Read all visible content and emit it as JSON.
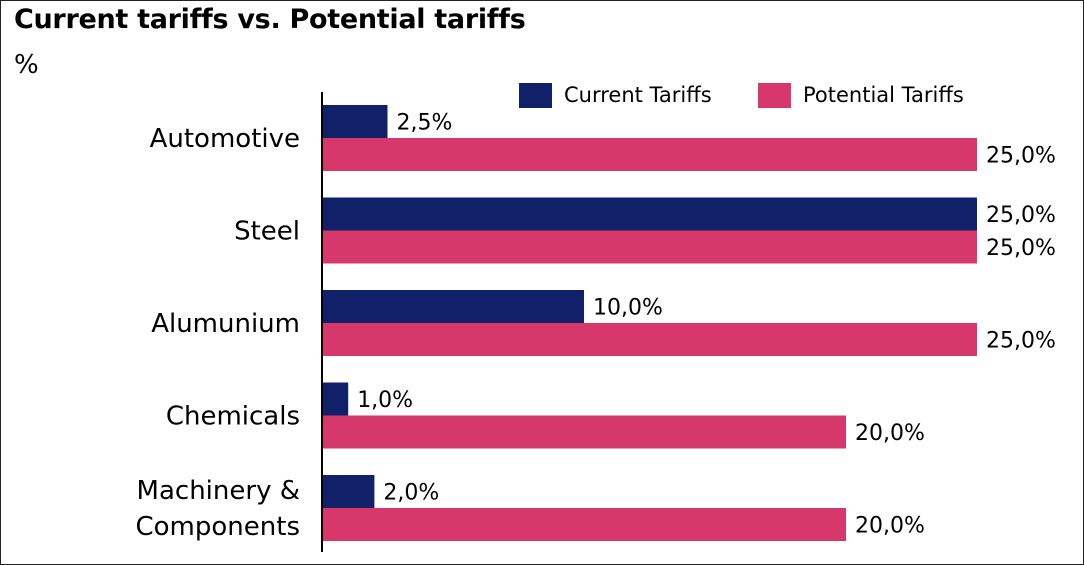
{
  "chart_data": {
    "type": "bar",
    "orientation": "horizontal",
    "title": "Current tariffs vs. Potential tariffs",
    "unit": "%",
    "categories": [
      [
        "Automotive"
      ],
      [
        "Steel"
      ],
      [
        "Alumunium"
      ],
      [
        "Chemicals"
      ],
      [
        "Machinery &",
        "Components"
      ]
    ],
    "series": [
      {
        "name": "Current Tariffs",
        "color": "#102069",
        "values": [
          2.5,
          25.0,
          10.0,
          1.0,
          2.0
        ],
        "labels": [
          "2,5%",
          "25,0%",
          "10,0%",
          "1,0%",
          "2,0%"
        ]
      },
      {
        "name": "Potential Tariffs",
        "color": "#d6386c",
        "values": [
          25.0,
          25.0,
          25.0,
          20.0,
          20.0
        ],
        "labels": [
          "25,0%",
          "25,0%",
          "25,0%",
          "20,0%",
          "20,0%"
        ]
      }
    ],
    "xlim": [
      0,
      25
    ],
    "grid": false,
    "legend_position": "top-right"
  }
}
